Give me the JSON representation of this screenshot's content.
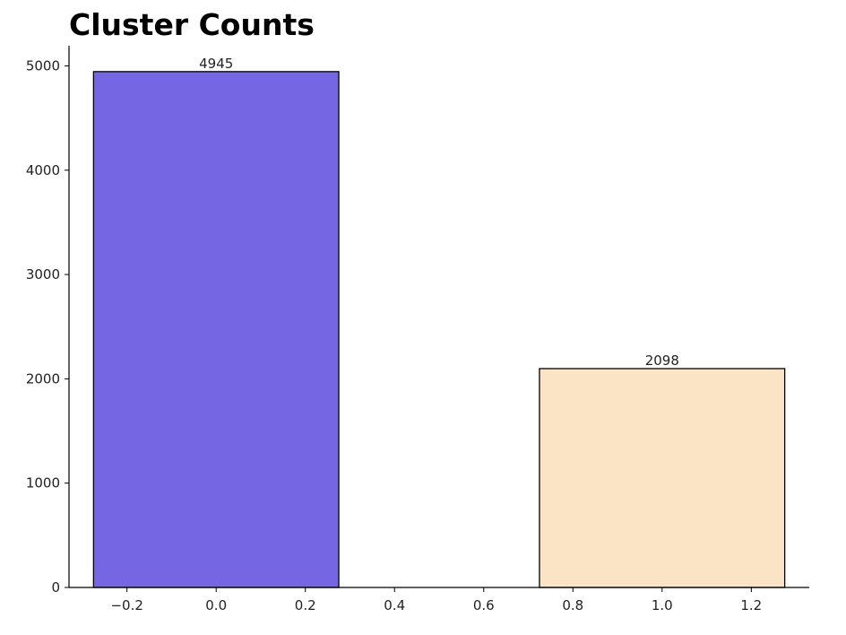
{
  "chart_data": {
    "type": "bar",
    "title": "Cluster Counts",
    "xlabel": "",
    "ylabel": "",
    "x": [
      0,
      1
    ],
    "values": [
      4945,
      2098
    ],
    "bar_width": 0.55,
    "colors": [
      "#7567e4",
      "#fbe3c6"
    ],
    "edge_color": "#000000",
    "data_labels": [
      "4945",
      "2098"
    ],
    "xlim": [
      -0.33,
      1.33
    ],
    "ylim": [
      0,
      5193
    ],
    "x_ticks": [
      -0.2,
      0.0,
      0.2,
      0.4,
      0.6,
      0.8,
      1.0,
      1.2
    ],
    "x_tick_labels": [
      "−0.2",
      "0.0",
      "0.2",
      "0.4",
      "0.6",
      "0.8",
      "1.0",
      "1.2"
    ],
    "y_ticks": [
      0,
      1000,
      2000,
      3000,
      4000,
      5000
    ],
    "y_tick_labels": [
      "0",
      "1000",
      "2000",
      "3000",
      "4000",
      "5000"
    ],
    "grid": false,
    "spines": [
      "left",
      "bottom"
    ]
  }
}
